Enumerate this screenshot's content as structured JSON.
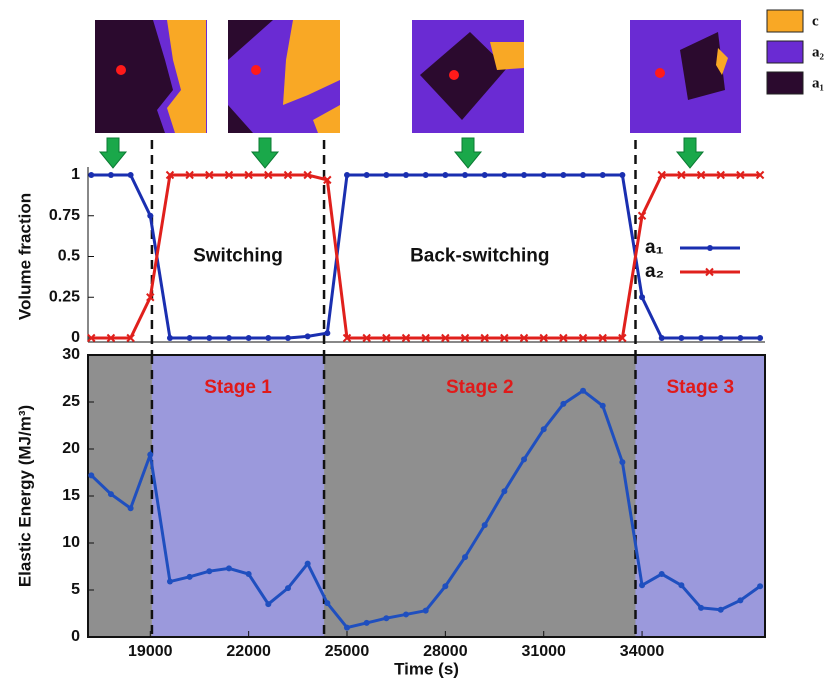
{
  "chart_data": [
    {
      "type": "line",
      "y_label": "Volume fraction",
      "x": [
        17200,
        17800,
        18400,
        19000,
        19600,
        20200,
        20800,
        21400,
        22000,
        22600,
        23200,
        23800,
        24400,
        25000,
        25600,
        26200,
        26800,
        27400,
        28000,
        28600,
        29200,
        29800,
        30400,
        31000,
        31600,
        32200,
        32800,
        33400,
        34000,
        34600,
        35200,
        35800,
        36400,
        37000,
        37600
      ],
      "series": [
        {
          "name": "a₁",
          "color": "#1a2fb0",
          "marker": "circle",
          "values": [
            1,
            1,
            1,
            0.75,
            0,
            0,
            0,
            0,
            0,
            0,
            0,
            0.01,
            0.03,
            1,
            1,
            1,
            1,
            1,
            1,
            1,
            1,
            1,
            1,
            1,
            1,
            1,
            1,
            1,
            0.25,
            0,
            0,
            0,
            0,
            0,
            0
          ]
        },
        {
          "name": "a₂",
          "color": "#e0201c",
          "marker": "x",
          "values": [
            0,
            0,
            0,
            0.25,
            1,
            1,
            1,
            1,
            1,
            1,
            1,
            1,
            0.97,
            0,
            0,
            0,
            0,
            0,
            0,
            0,
            0,
            0,
            0,
            0,
            0,
            0,
            0,
            0,
            0.75,
            1,
            1,
            1,
            1,
            1,
            1
          ]
        }
      ],
      "xlim": [
        17100,
        37750
      ],
      "ylim": [
        0,
        1
      ],
      "yticks": [
        0,
        0.25,
        0.5,
        0.75,
        1
      ],
      "boundaries": [
        19050,
        24300,
        33800
      ],
      "annotations": [
        "Switching",
        "Back-switching"
      ]
    },
    {
      "type": "line",
      "x_label": "Time (s)",
      "y_label": "Elastic Energy (MJ/m³)",
      "x": [
        17200,
        17800,
        18400,
        19000,
        19600,
        20200,
        20800,
        21400,
        22000,
        22600,
        23200,
        23800,
        24400,
        25000,
        25600,
        26200,
        26800,
        27400,
        28000,
        28600,
        29200,
        29800,
        30400,
        31000,
        31600,
        32200,
        32800,
        33400,
        34000,
        34600,
        35200,
        35800,
        36400,
        37000,
        37600
      ],
      "series": [
        {
          "color": "#1f4fbf",
          "marker": "circle",
          "values": [
            17.2,
            15.2,
            13.7,
            19.4,
            5.9,
            6.4,
            7.0,
            7.3,
            6.7,
            3.5,
            5.2,
            7.8,
            3.6,
            1.0,
            1.5,
            2.0,
            2.4,
            2.8,
            5.4,
            8.5,
            11.9,
            15.5,
            18.9,
            22.1,
            24.8,
            26.2,
            24.6,
            18.6,
            5.5,
            6.7,
            5.5,
            3.1,
            2.9,
            3.9,
            5.4
          ]
        }
      ],
      "xlim": [
        17100,
        37750
      ],
      "ylim": [
        0,
        30
      ],
      "xticks": [
        19000,
        22000,
        25000,
        28000,
        31000,
        34000
      ],
      "yticks": [
        0,
        5,
        10,
        15,
        20,
        25,
        30
      ],
      "boundaries": [
        19050,
        24300,
        33800
      ],
      "regions": [
        {
          "color": "#8f8f8f"
        },
        {
          "color": "#9b99dc",
          "label": "Stage 1"
        },
        {
          "color": "#8f8f8f",
          "label": "Stage 2"
        },
        {
          "color": "#9b99dc",
          "label": "Stage 3"
        }
      ]
    }
  ],
  "phase_legend": [
    {
      "label": "c",
      "color": "#f9a825"
    },
    {
      "label": "a₂",
      "color": "#6a2bd3"
    },
    {
      "label": "a₁",
      "color": "#2b0a2e"
    }
  ]
}
